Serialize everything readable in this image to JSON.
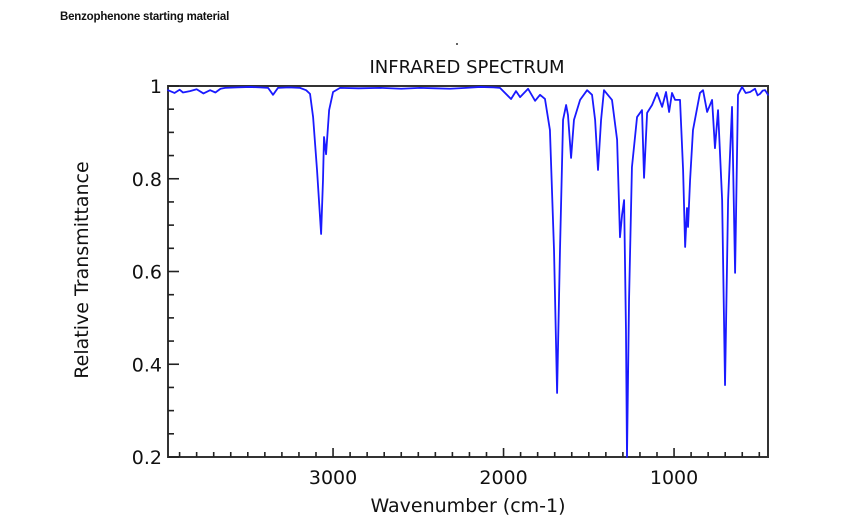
{
  "page": {
    "caption": "Benzophenone starting material"
  },
  "chart_data": {
    "type": "line",
    "title": "INFRARED SPECTRUM",
    "xlabel": "Wavenumber (cm-1)",
    "ylabel": "Relative Transmittance",
    "xlim": [
      3968,
      449
    ],
    "x_reversed": true,
    "ylim": [
      0.2,
      1.0
    ],
    "xticks": [
      3000,
      2000,
      1000
    ],
    "xtick_labels": [
      "3000",
      "2000",
      "1000"
    ],
    "x_minor_step": 100,
    "yticks": [
      0.2,
      0.4,
      0.6,
      0.8,
      1.0
    ],
    "ytick_labels": [
      "0.2",
      "0.4",
      "0.6",
      "0.8",
      "1"
    ],
    "y_minor_step": 0.05,
    "grid": false,
    "legend": "none",
    "series": [
      {
        "name": "Benzophenone",
        "color": "#1a1aff",
        "x": [
          3968,
          3930,
          3900,
          3880,
          3839,
          3800,
          3760,
          3721,
          3690,
          3660,
          3633,
          3560,
          3487,
          3430,
          3381,
          3352,
          3323,
          3260,
          3194,
          3158,
          3135,
          3117,
          3094,
          3070,
          3059,
          3053,
          3041,
          3023,
          3000,
          2959,
          2850,
          2724,
          2600,
          2490,
          2400,
          2314,
          2220,
          2138,
          2060,
          2021,
          1956,
          1927,
          1903,
          1856,
          1815,
          1786,
          1757,
          1728,
          1704,
          1686,
          1669,
          1651,
          1633,
          1622,
          1604,
          1587,
          1551,
          1510,
          1481,
          1463,
          1446,
          1428,
          1411,
          1364,
          1334,
          1317,
          1305,
          1293,
          1282,
          1276,
          1264,
          1247,
          1217,
          1188,
          1176,
          1158,
          1129,
          1100,
          1070,
          1047,
          1029,
          1012,
          994,
          965,
          947,
          935,
          924,
          918,
          906,
          889,
          848,
          830,
          806,
          777,
          760,
          742,
          718,
          701,
          683,
          660,
          642,
          625,
          601,
          580,
          554,
          525,
          510,
          496,
          480,
          466,
          449
        ],
        "y": [
          0.991,
          0.985,
          0.992,
          0.986,
          0.989,
          0.993,
          0.984,
          0.991,
          0.986,
          0.994,
          0.996,
          0.997,
          0.998,
          0.997,
          0.996,
          0.981,
          0.996,
          0.997,
          0.996,
          0.991,
          0.983,
          0.933,
          0.819,
          0.681,
          0.797,
          0.89,
          0.853,
          0.948,
          0.987,
          0.996,
          0.995,
          0.996,
          0.994,
          0.996,
          0.995,
          0.994,
          0.996,
          0.998,
          0.997,
          0.996,
          0.972,
          0.989,
          0.976,
          0.994,
          0.968,
          0.981,
          0.972,
          0.905,
          0.646,
          0.338,
          0.646,
          0.927,
          0.959,
          0.937,
          0.845,
          0.927,
          0.97,
          0.991,
          0.981,
          0.927,
          0.819,
          0.927,
          0.991,
          0.97,
          0.884,
          0.674,
          0.722,
          0.754,
          0.474,
          0.2,
          0.539,
          0.825,
          0.933,
          0.948,
          0.802,
          0.942,
          0.959,
          0.985,
          0.955,
          0.987,
          0.944,
          0.985,
          0.97,
          0.97,
          0.819,
          0.653,
          0.737,
          0.696,
          0.797,
          0.905,
          0.985,
          0.991,
          0.944,
          0.97,
          0.866,
          0.948,
          0.754,
          0.355,
          0.754,
          0.955,
          0.597,
          0.981,
          0.998,
          0.985,
          0.987,
          0.994,
          0.98,
          0.983,
          0.99,
          0.991,
          0.981
        ]
      }
    ]
  }
}
